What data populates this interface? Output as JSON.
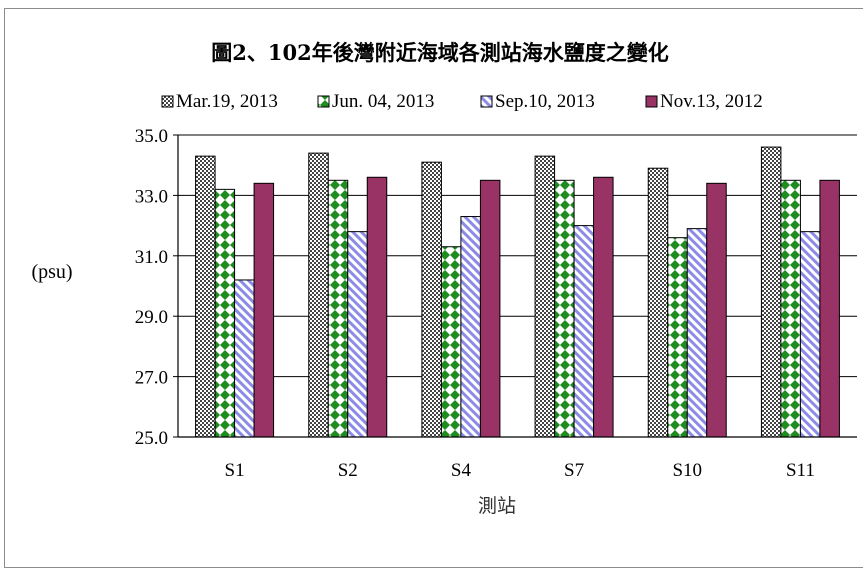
{
  "chart_data": {
    "type": "bar",
    "title": "圖2、102年後灣附近海域各測站海水鹽度之變化",
    "xlabel": "測站",
    "ylabel": "(psu)",
    "categories": [
      "S1",
      "S2",
      "S4",
      "S7",
      "S10",
      "S11"
    ],
    "ylim": [
      25.0,
      35.0
    ],
    "yticks": [
      "25.0",
      "27.0",
      "29.0",
      "31.0",
      "33.0",
      "35.0"
    ],
    "grid": true,
    "legend_position": "top",
    "series": [
      {
        "name": "Mar.19, 2013",
        "values": [
          34.3,
          34.4,
          34.1,
          34.3,
          33.9,
          34.6
        ],
        "pattern": "checker",
        "color": "#555555"
      },
      {
        "name": "Jun. 04, 2013",
        "values": [
          33.2,
          33.5,
          31.3,
          33.5,
          31.6,
          33.5
        ],
        "pattern": "diamond",
        "color": "#1e8c1e"
      },
      {
        "name": "Sep.10, 2013",
        "values": [
          30.2,
          31.8,
          32.3,
          32.0,
          31.9,
          31.8
        ],
        "pattern": "diagonal",
        "color": "#8c8ce6"
      },
      {
        "name": "Nov.13, 2012",
        "values": [
          33.4,
          33.6,
          33.5,
          33.6,
          33.4,
          33.5
        ],
        "pattern": "solid",
        "color": "#993366"
      }
    ]
  }
}
